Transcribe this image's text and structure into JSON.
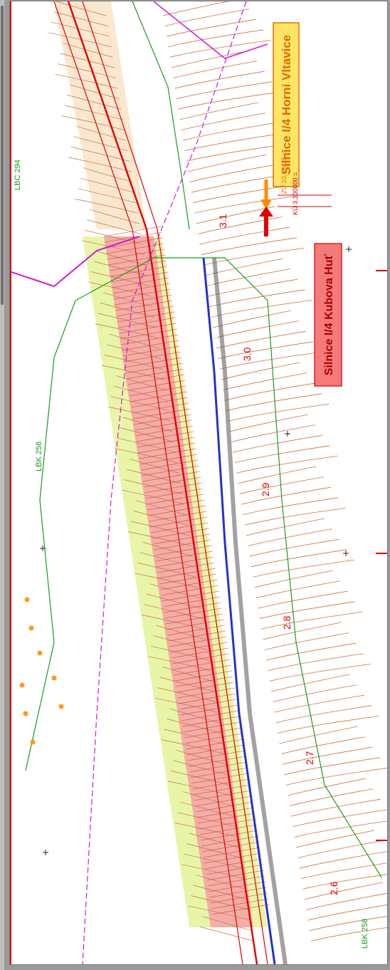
{
  "map": {
    "road_horni_label": "Silnice I/4  Horní Vltavice",
    "road_kubova_label": "Silnice I/4  Kubova  Huť",
    "stationing_start": "ZÚ 10,32425  =",
    "stationing_end": "KÚ 3,100000  =",
    "chainages": [
      "3.1",
      "3.0",
      "2.9",
      "2.8",
      "2.7",
      "2.6"
    ],
    "lbk": [
      "LBC 294",
      "LBK 258",
      "LBK 258"
    ],
    "colors": {
      "road_highlight": "#f3a6a6",
      "tint": "#e4f39a",
      "contour": "#c8743a",
      "axis": "#e00000",
      "green": "#1c9b1c",
      "magenta": "#d21ad2",
      "blue": "#2233cc",
      "orange": "#ff8c00"
    }
  }
}
